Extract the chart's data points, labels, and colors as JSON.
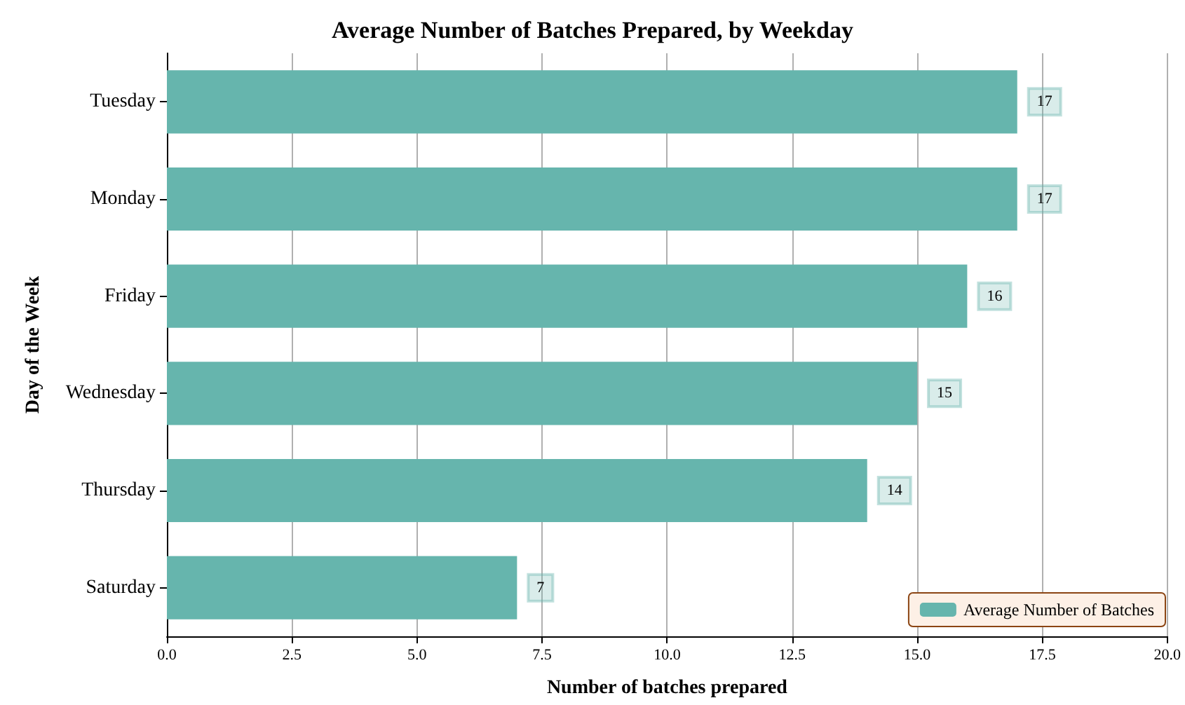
{
  "chart_data": {
    "type": "bar",
    "orientation": "horizontal",
    "title": "Average Number of Batches Prepared, by Weekday",
    "xlabel": "Number of batches prepared",
    "ylabel": "Day of the Week",
    "categories": [
      "Tuesday",
      "Monday",
      "Friday",
      "Wednesday",
      "Thursday",
      "Saturday"
    ],
    "series": [
      {
        "name": "Average Number of Batches",
        "color": "#66b5ad",
        "values": [
          17,
          17,
          16,
          15,
          14,
          7
        ]
      }
    ],
    "xlim": [
      0,
      20
    ],
    "xticks": [
      {
        "value": 0,
        "label": "0.0"
      },
      {
        "value": 2.5,
        "label": "2.5"
      },
      {
        "value": 5,
        "label": "5.0"
      },
      {
        "value": 7.5,
        "label": "7.5"
      },
      {
        "value": 10,
        "label": "10.0"
      },
      {
        "value": 12.5,
        "label": "12.5"
      },
      {
        "value": 15,
        "label": "15.0"
      },
      {
        "value": 17.5,
        "label": "17.5"
      },
      {
        "value": 20,
        "label": "20.0"
      }
    ],
    "grid": "x",
    "legend": "bottom right",
    "data_labels": true
  }
}
